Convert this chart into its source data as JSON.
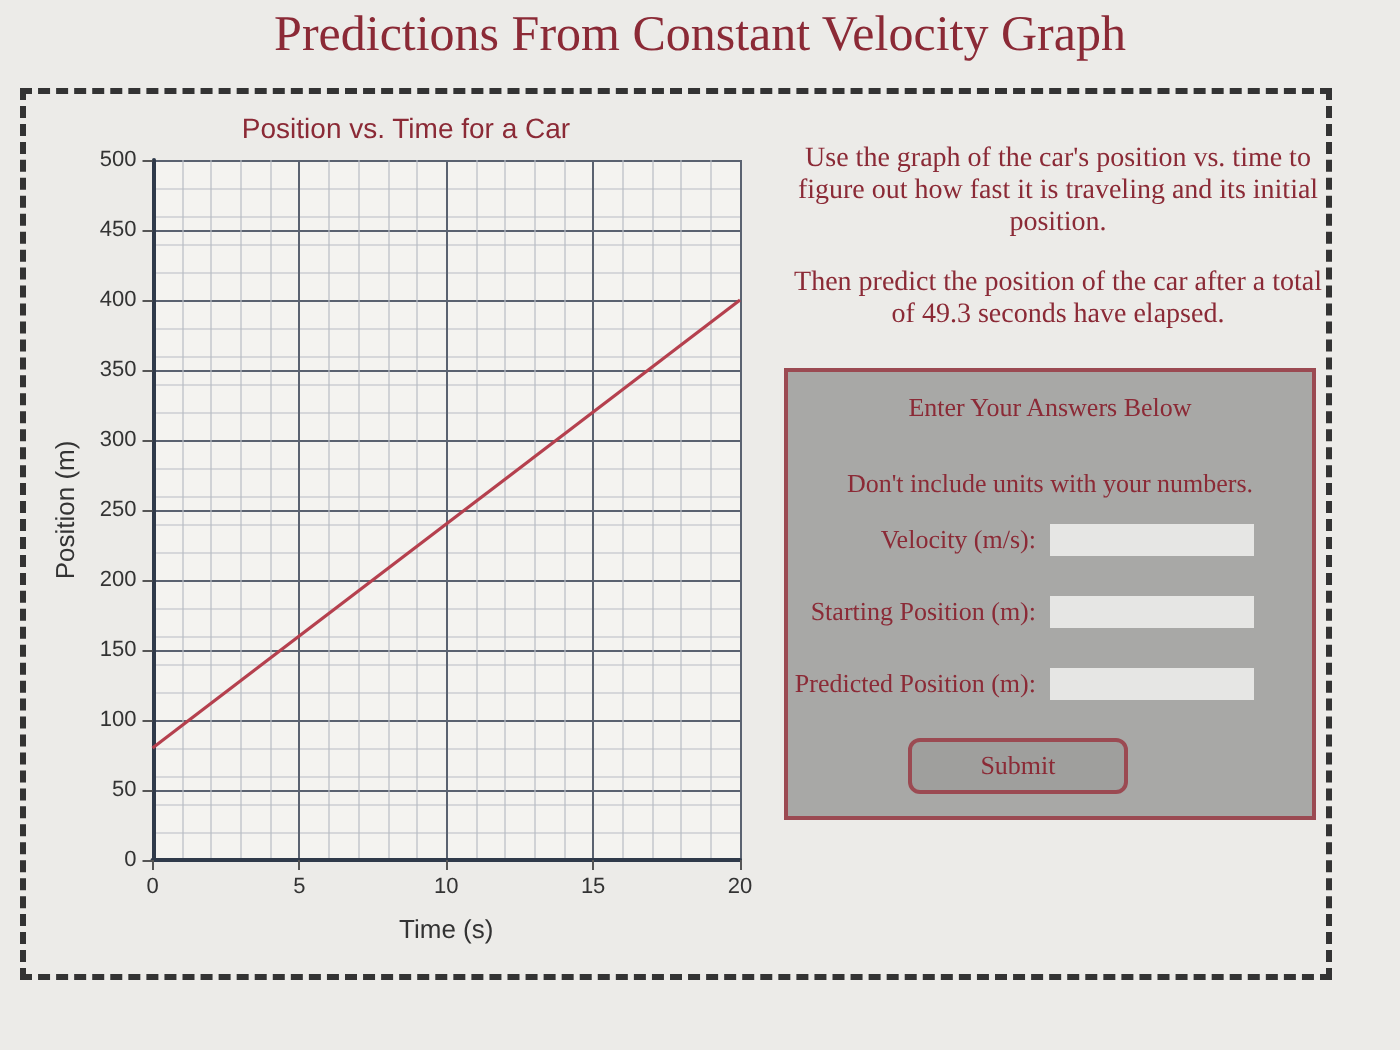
{
  "chart_data": {
    "type": "line",
    "title": "Position vs. Time for a Car",
    "xlabel": "Time (s)",
    "ylabel": "Position (m)",
    "x": [
      0,
      20
    ],
    "series": [
      {
        "color": "#b5404e",
        "values": [
          80,
          400
        ]
      }
    ],
    "xlim": [
      0,
      20
    ],
    "xticks": [
      0,
      5,
      10,
      15,
      20
    ],
    "ylim": [
      0,
      500
    ],
    "yticks": [
      0,
      50,
      100,
      150,
      200,
      250,
      300,
      350,
      400,
      450,
      500
    ],
    "grid": true,
    "marker": "none",
    "line_style": "solid",
    "annotations": [
      "Predictions From Constant Velocity Graph",
      "Use the graph of the car's position vs. time to figure out how fast it is traveling and its initial position.",
      "Then predict the position of the car after a total of 49.3 seconds have elapsed.",
      "Enter Your Answers Below",
      "Don't include units with your numbers.",
      "Velocity (m/s):",
      "Starting Position (m):",
      "Predicted Position (m):",
      "Submit"
    ]
  }
}
